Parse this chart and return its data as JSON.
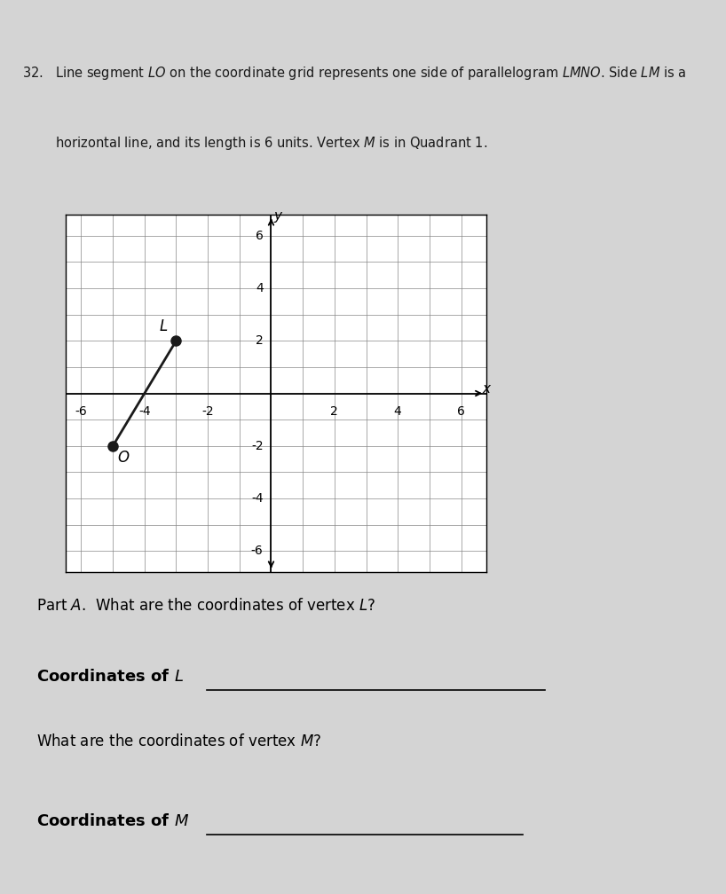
{
  "background_color": "#d4d4d4",
  "axis_range": [
    -6,
    6
  ],
  "L": [
    -3,
    2
  ],
  "O": [
    -5,
    -2
  ],
  "dot_color": "#1a1a1a",
  "dot_size": 8,
  "line_color": "#1a1a1a",
  "line_width": 2.0,
  "label_L": "$L$",
  "label_O": "$O$",
  "label_fontsize": 12,
  "axis_fontsize": 11,
  "grid_color": "#888888",
  "grid_linewidth": 0.5,
  "tick_fontsize": 10,
  "question_text_line1": "32.   Line segment $LO$ on the coordinate grid represents one side of parallelogram $LMNO$. Side $LM$ is a",
  "question_text_line2": "        horizontal line, and its length is 6 units. Vertex $M$ is in Quadrant 1.",
  "part_a_text": "Part $A$.  What are the coordinates of vertex $L$?",
  "coords_L_label": "Coordinates of $L$",
  "coords_M_question": "What are the coordinates of vertex $M$?",
  "coords_M_label": "Coordinates of $M$",
  "fig_width": 8.18,
  "fig_height": 10.08
}
